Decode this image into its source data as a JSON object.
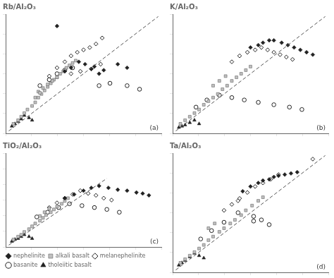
{
  "chart_data": [
    {
      "type": "scatter",
      "title": "Rb/Al₂O₃",
      "annotation": "(a)",
      "xlim": [
        0,
        1
      ],
      "ylim": [
        0,
        1
      ],
      "xticks": [
        0,
        0.16666666666666666,
        0.3333333333333333,
        0.5,
        0.6666666666666666,
        0.8333333333333334,
        1
      ],
      "yticks": [
        0,
        0.16666666666666666,
        0.3333333333333333,
        0.5,
        0.6666666666666666,
        0.8333333333333334,
        1
      ],
      "grid": false,
      "tick_labels": false,
      "series": [
        {
          "type": "line",
          "line_style": "dashed",
          "color": "#555555",
          "x": [
            0.02,
            0.98
          ],
          "values": [
            0.02,
            0.98
          ]
        },
        {
          "name": "nephelinite",
          "marker": "diamond",
          "color": "#222222",
          "x": [
            0.38,
            0.42,
            0.47,
            0.51,
            0.55,
            0.6,
            0.63,
            0.57,
            0.72,
            0.78,
            0.33
          ],
          "values": [
            0.52,
            0.55,
            0.6,
            0.58,
            0.54,
            0.5,
            0.53,
            0.56,
            0.58,
            0.55,
            0.9
          ]
        },
        {
          "name": "alkali basalt",
          "marker": "square",
          "color": "#c0c0c0",
          "x": [
            0.05,
            0.08,
            0.1,
            0.12,
            0.14,
            0.17,
            0.19,
            0.21,
            0.23,
            0.25,
            0.27,
            0.29,
            0.31,
            0.33,
            0.35,
            0.37,
            0.39,
            0.41,
            0.43,
            0.45,
            0.21,
            0.24,
            0.27,
            0.3,
            0.33,
            0.19,
            0.22
          ],
          "values": [
            0.08,
            0.11,
            0.14,
            0.17,
            0.2,
            0.23,
            0.26,
            0.3,
            0.33,
            0.36,
            0.39,
            0.42,
            0.45,
            0.47,
            0.5,
            0.52,
            0.55,
            0.57,
            0.59,
            0.61,
            0.35,
            0.38,
            0.41,
            0.44,
            0.47,
            0.3,
            0.34
          ]
        },
        {
          "name": "melanephelinite",
          "marker": "open_diamond",
          "color": "#222222",
          "x": [
            0.28,
            0.33,
            0.38,
            0.42,
            0.46,
            0.5,
            0.54,
            0.58,
            0.62,
            0.42,
            0.48,
            0.55,
            0.61
          ],
          "values": [
            0.48,
            0.55,
            0.6,
            0.65,
            0.68,
            0.7,
            0.72,
            0.75,
            0.8,
            0.5,
            0.52,
            0.54,
            0.58
          ]
        },
        {
          "name": "basanite",
          "marker": "open_circle",
          "color": "#222222",
          "x": [
            0.22,
            0.28,
            0.33,
            0.38,
            0.43,
            0.6,
            0.67,
            0.78,
            0.86
          ],
          "values": [
            0.4,
            0.45,
            0.5,
            0.53,
            0.55,
            0.4,
            0.42,
            0.4,
            0.37
          ]
        },
        {
          "name": "tholeiitic basalt",
          "marker": "triangle",
          "color": "#222222",
          "x": [
            0.04,
            0.06,
            0.08,
            0.1,
            0.12,
            0.15,
            0.17
          ],
          "values": [
            0.06,
            0.08,
            0.1,
            0.12,
            0.15,
            0.13,
            0.11
          ]
        }
      ]
    },
    {
      "type": "scatter",
      "title": "K/Al₂O₃",
      "annotation": "(b)",
      "xlim": [
        0,
        1
      ],
      "ylim": [
        0,
        1
      ],
      "xticks": [
        0,
        0.16666666666666666,
        0.3333333333333333,
        0.5,
        0.6666666666666666,
        0.8333333333333334,
        1
      ],
      "yticks": [
        0,
        0.16666666666666666,
        0.3333333333333333,
        0.5,
        0.6666666666666666,
        0.8333333333333334,
        1
      ],
      "grid": false,
      "tick_labels": false,
      "series": [
        {
          "type": "line",
          "line_style": "dashed",
          "color": "#555555",
          "x": [
            0.02,
            0.98
          ],
          "values": [
            0.02,
            0.98
          ]
        },
        {
          "name": "nephelinite",
          "marker": "diamond",
          "color": "#222222",
          "x": [
            0.5,
            0.55,
            0.58,
            0.62,
            0.65,
            0.7,
            0.74,
            0.78,
            0.82,
            0.86,
            0.9
          ],
          "values": [
            0.72,
            0.74,
            0.76,
            0.78,
            0.78,
            0.76,
            0.74,
            0.72,
            0.7,
            0.68,
            0.66
          ]
        },
        {
          "name": "alkali basalt",
          "marker": "square",
          "color": "#c0c0c0",
          "x": [
            0.05,
            0.08,
            0.11,
            0.14,
            0.17,
            0.2,
            0.23,
            0.26,
            0.29,
            0.32,
            0.35,
            0.38,
            0.41,
            0.44,
            0.47,
            0.5,
            0.26,
            0.3,
            0.34
          ],
          "values": [
            0.08,
            0.11,
            0.14,
            0.17,
            0.2,
            0.24,
            0.27,
            0.3,
            0.33,
            0.37,
            0.4,
            0.44,
            0.47,
            0.5,
            0.53,
            0.56,
            0.4,
            0.44,
            0.48
          ]
        },
        {
          "name": "melanephelinite",
          "marker": "open_diamond",
          "color": "#222222",
          "x": [
            0.38,
            0.43,
            0.48,
            0.53,
            0.57,
            0.61,
            0.65,
            0.69,
            0.73,
            0.77
          ],
          "values": [
            0.6,
            0.65,
            0.68,
            0.7,
            0.72,
            0.7,
            0.68,
            0.66,
            0.64,
            0.62
          ]
        },
        {
          "name": "basanite",
          "marker": "open_circle",
          "color": "#222222",
          "x": [
            0.15,
            0.22,
            0.3,
            0.38,
            0.46,
            0.55,
            0.65,
            0.75,
            0.83
          ],
          "values": [
            0.22,
            0.28,
            0.32,
            0.3,
            0.28,
            0.26,
            0.24,
            0.22,
            0.2
          ]
        },
        {
          "name": "tholeiitic basalt",
          "marker": "triangle",
          "color": "#222222",
          "x": [
            0.04,
            0.06,
            0.08,
            0.11,
            0.14,
            0.17
          ],
          "values": [
            0.05,
            0.06,
            0.07,
            0.09,
            0.11,
            0.08
          ]
        }
      ]
    },
    {
      "type": "scatter",
      "title": "TiO₂/Al₂O₃",
      "annotation": "(c)",
      "legend": "lower left",
      "xlim": [
        0,
        1
      ],
      "ylim": [
        0,
        1
      ],
      "xticks": [
        0,
        0.16666666666666666,
        0.3333333333333333,
        0.5,
        0.6666666666666666,
        0.8333333333333334,
        1
      ],
      "yticks": [
        0,
        0.16666666666666666,
        0.3333333333333333,
        0.5,
        0.6666666666666666,
        0.8333333333333334,
        1
      ],
      "grid": false,
      "tick_labels": false,
      "series": [
        {
          "type": "line",
          "line_style": "dashed",
          "color": "#555555",
          "x": [
            0.02,
            0.65
          ],
          "values": [
            0.02,
            0.73
          ]
        },
        {
          "name": "nephelinite",
          "marker": "diamond",
          "color": "#222222",
          "x": [
            0.38,
            0.44,
            0.5,
            0.55,
            0.6,
            0.66,
            0.72,
            0.78,
            0.84,
            0.88,
            0.92
          ],
          "values": [
            0.52,
            0.56,
            0.6,
            0.63,
            0.65,
            0.63,
            0.61,
            0.6,
            0.58,
            0.57,
            0.55
          ]
        },
        {
          "name": "alkali basalt",
          "marker": "square",
          "color": "#c0c0c0",
          "x": [
            0.05,
            0.08,
            0.1,
            0.12,
            0.15,
            0.17,
            0.19,
            0.22,
            0.24,
            0.26,
            0.29,
            0.31,
            0.33,
            0.36,
            0.38,
            0.4,
            0.22,
            0.25,
            0.28
          ],
          "values": [
            0.08,
            0.11,
            0.13,
            0.16,
            0.19,
            0.22,
            0.25,
            0.28,
            0.31,
            0.34,
            0.37,
            0.4,
            0.43,
            0.46,
            0.49,
            0.52,
            0.33,
            0.37,
            0.41
          ]
        },
        {
          "name": "melanephelinite",
          "marker": "open_diamond",
          "color": "#222222",
          "x": [
            0.28,
            0.33,
            0.38,
            0.43,
            0.48,
            0.53,
            0.58,
            0.63,
            0.68
          ],
          "values": [
            0.42,
            0.47,
            0.52,
            0.56,
            0.6,
            0.57,
            0.55,
            0.52,
            0.5
          ]
        },
        {
          "name": "basanite",
          "marker": "open_circle",
          "color": "#222222",
          "x": [
            0.2,
            0.27,
            0.34,
            0.41,
            0.49,
            0.57,
            0.65,
            0.73
          ],
          "values": [
            0.32,
            0.37,
            0.42,
            0.46,
            0.44,
            0.42,
            0.4,
            0.37
          ]
        },
        {
          "name": "tholeiitic basalt",
          "marker": "triangle",
          "color": "#222222",
          "x": [
            0.04,
            0.06,
            0.08,
            0.1,
            0.12,
            0.15,
            0.17
          ],
          "values": [
            0.06,
            0.08,
            0.09,
            0.11,
            0.13,
            0.11,
            0.09
          ]
        }
      ]
    },
    {
      "type": "scatter",
      "title": "Ta/Al₂O₃",
      "annotation": "(d)",
      "xlim": [
        0,
        1
      ],
      "ylim": [
        0,
        1
      ],
      "xticks": [
        0,
        0.16666666666666666,
        0.3333333333333333,
        0.5,
        0.6666666666666666,
        0.8333333333333334,
        1
      ],
      "yticks": [
        0,
        0.16666666666666666,
        0.3333333333333333,
        0.5,
        0.6666666666666666,
        0.8333333333333334,
        1
      ],
      "grid": false,
      "tick_labels": false,
      "series": [
        {
          "type": "line",
          "line_style": "dashed",
          "color": "#555555",
          "x": [
            0.02,
            0.98
          ],
          "values": [
            0.02,
            0.98
          ]
        },
        {
          "name": "nephelinite",
          "marker": "diamond",
          "color": "#222222",
          "x": [
            0.45,
            0.5,
            0.55,
            0.58,
            0.62,
            0.65,
            0.68,
            0.72,
            0.76,
            0.8
          ],
          "values": [
            0.68,
            0.72,
            0.75,
            0.77,
            0.78,
            0.8,
            0.81,
            0.82,
            0.83,
            0.84
          ]
        },
        {
          "name": "alkali basalt",
          "marker": "square",
          "color": "#c0c0c0",
          "x": [
            0.05,
            0.08,
            0.11,
            0.14,
            0.17,
            0.2,
            0.23,
            0.26,
            0.3,
            0.33,
            0.37,
            0.4,
            0.44,
            0.47,
            0.51,
            0.55,
            0.58,
            0.23,
            0.27
          ],
          "values": [
            0.08,
            0.11,
            0.14,
            0.17,
            0.2,
            0.23,
            0.27,
            0.3,
            0.34,
            0.37,
            0.41,
            0.44,
            0.48,
            0.52,
            0.56,
            0.6,
            0.63,
            0.37,
            0.41
          ]
        },
        {
          "name": "melanephelinite",
          "marker": "open_diamond",
          "color": "#222222",
          "x": [
            0.33,
            0.38,
            0.43,
            0.48,
            0.53,
            0.58,
            0.63,
            0.68,
            0.42,
            0.9
          ],
          "values": [
            0.52,
            0.57,
            0.62,
            0.67,
            0.72,
            0.75,
            0.78,
            0.82,
            0.6,
            0.95
          ]
        },
        {
          "name": "basanite",
          "marker": "open_circle",
          "color": "#222222",
          "x": [
            0.18,
            0.25,
            0.33,
            0.42,
            0.52,
            0.62,
            0.52,
            0.57
          ],
          "values": [
            0.28,
            0.35,
            0.42,
            0.5,
            0.43,
            0.4,
            0.47,
            0.44
          ]
        },
        {
          "name": "tholeiitic basalt",
          "marker": "triangle",
          "color": "#222222",
          "x": [
            0.04,
            0.06,
            0.08,
            0.11,
            0.14,
            0.17,
            0.2
          ],
          "values": [
            0.06,
            0.08,
            0.1,
            0.13,
            0.16,
            0.14,
            0.12
          ]
        }
      ]
    }
  ]
}
